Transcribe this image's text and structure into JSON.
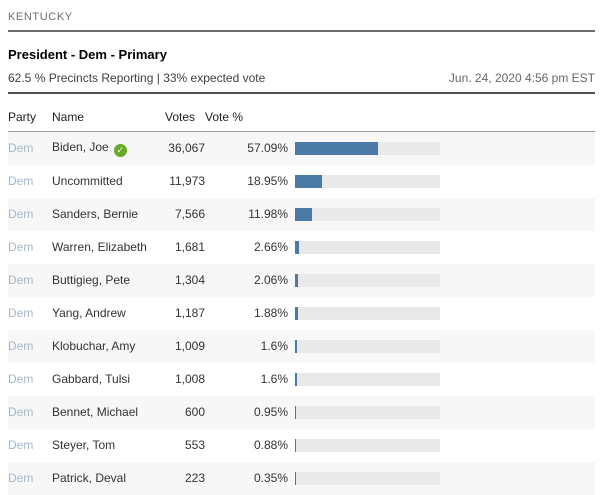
{
  "header": {
    "state": "KENTUCKY",
    "title": "President - Dem - Primary",
    "reporting": "62.5 % Precincts Reporting | 33% expected vote",
    "timestamp": "Jun. 24, 2020 4:56 pm EST"
  },
  "table": {
    "columns": [
      "Party",
      "Name",
      "Votes",
      "Vote %"
    ],
    "rows": [
      {
        "party": "Dem",
        "name": "Biden, Joe",
        "winner": true,
        "votes": "36,067",
        "pct": "57.09%",
        "pct_value": 57.09
      },
      {
        "party": "Dem",
        "name": "Uncommitted",
        "winner": false,
        "votes": "11,973",
        "pct": "18.95%",
        "pct_value": 18.95
      },
      {
        "party": "Dem",
        "name": "Sanders, Bernie",
        "winner": false,
        "votes": "7,566",
        "pct": "11.98%",
        "pct_value": 11.98
      },
      {
        "party": "Dem",
        "name": "Warren, Elizabeth",
        "winner": false,
        "votes": "1,681",
        "pct": "2.66%",
        "pct_value": 2.66
      },
      {
        "party": "Dem",
        "name": "Buttigieg, Pete",
        "winner": false,
        "votes": "1,304",
        "pct": "2.06%",
        "pct_value": 2.06
      },
      {
        "party": "Dem",
        "name": "Yang, Andrew",
        "winner": false,
        "votes": "1,187",
        "pct": "1.88%",
        "pct_value": 1.88
      },
      {
        "party": "Dem",
        "name": "Klobuchar, Amy",
        "winner": false,
        "votes": "1,009",
        "pct": "1.6%",
        "pct_value": 1.6
      },
      {
        "party": "Dem",
        "name": "Gabbard, Tulsi",
        "winner": false,
        "votes": "1,008",
        "pct": "1.6%",
        "pct_value": 1.6
      },
      {
        "party": "Dem",
        "name": "Bennet, Michael",
        "winner": false,
        "votes": "600",
        "pct": "0.95%",
        "pct_value": 0.95
      },
      {
        "party": "Dem",
        "name": "Steyer, Tom",
        "winner": false,
        "votes": "553",
        "pct": "0.88%",
        "pct_value": 0.88
      },
      {
        "party": "Dem",
        "name": "Patrick, Deval",
        "winner": false,
        "votes": "223",
        "pct": "0.35%",
        "pct_value": 0.35
      }
    ]
  },
  "icons": {
    "winner_check": "check-circle",
    "winner_check_glyph": "✓"
  },
  "colors": {
    "bar_fill": "#4a7aa5",
    "bar_track": "#e9e9e9",
    "alt_row_bg": "#f7f7f7",
    "party_link": "#a2b8cc",
    "winner_green": "#68a82a"
  },
  "chart_data": {
    "type": "bar",
    "orientation": "horizontal",
    "title": "President - Dem - Primary",
    "subtitle": "KENTUCKY — 62.5 % Precincts Reporting | 33% expected vote",
    "categories": [
      "Biden, Joe",
      "Uncommitted",
      "Sanders, Bernie",
      "Warren, Elizabeth",
      "Buttigieg, Pete",
      "Yang, Andrew",
      "Klobuchar, Amy",
      "Gabbard, Tulsi",
      "Bennet, Michael",
      "Steyer, Tom",
      "Patrick, Deval"
    ],
    "series": [
      {
        "name": "Votes",
        "values": [
          36067,
          11973,
          7566,
          1681,
          1304,
          1187,
          1009,
          1008,
          600,
          553,
          223
        ]
      },
      {
        "name": "Vote %",
        "values": [
          57.09,
          18.95,
          11.98,
          2.66,
          2.06,
          1.88,
          1.6,
          1.6,
          0.95,
          0.88,
          0.35
        ]
      }
    ],
    "xlabel": "Vote %",
    "ylabel": "",
    "xlim": [
      0,
      100
    ],
    "grid": false,
    "legend": false
  }
}
